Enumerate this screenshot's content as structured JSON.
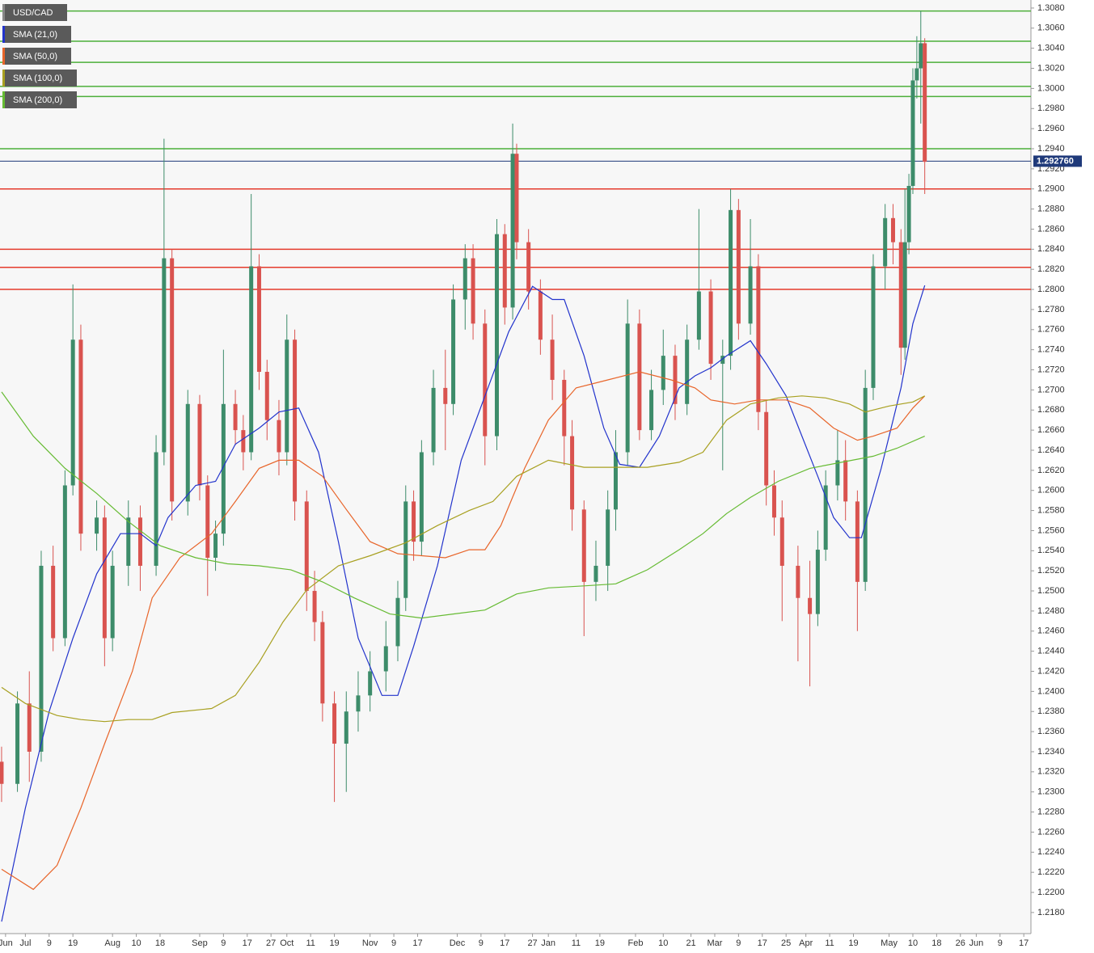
{
  "chart_data": {
    "type": "candlestick",
    "title": "USD/CAD",
    "title_color": "#888888",
    "up_color": "#3d8c6a",
    "down_color": "#d9534f",
    "x": [
      0,
      4,
      7,
      10,
      13,
      16,
      18,
      20,
      24,
      26,
      28,
      32,
      35,
      39,
      41,
      43,
      47,
      50,
      52,
      54,
      56,
      59,
      61,
      63,
      65,
      67,
      70,
      72,
      74,
      77,
      79,
      81,
      84,
      87,
      90,
      93,
      97,
      100,
      102,
      104,
      106,
      109,
      112,
      114,
      117,
      119,
      122,
      125,
      127,
      129,
      130,
      133,
      136,
      139,
      142,
      144,
      147,
      150,
      153,
      155,
      158,
      161,
      164,
      167,
      170,
      173,
      176,
      179,
      182,
      184,
      186,
      189,
      191,
      193,
      195,
      197,
      201,
      204,
      206,
      208,
      211,
      213,
      216,
      218,
      220,
      223,
      225,
      227,
      228,
      229,
      230,
      231,
      232,
      233
    ],
    "open": [
      1.233,
      1.2308,
      1.2388,
      1.234,
      1.2525,
      1.2453,
      1.2605,
      1.275,
      1.2557,
      1.2573,
      1.2453,
      1.2525,
      1.2573,
      1.2525,
      1.2638,
      1.2831,
      1.2589,
      1.2686,
      1.2605,
      1.2533,
      1.2557,
      1.2686,
      1.266,
      1.2638,
      1.2823,
      1.2718,
      1.267,
      1.2638,
      1.275,
      1.2589,
      1.25,
      1.2469,
      1.2388,
      1.2348,
      1.238,
      1.2396,
      1.242,
      1.2445,
      1.2493,
      1.2589,
      1.2549,
      1.2638,
      1.2702,
      1.2686,
      1.279,
      1.2831,
      1.2766,
      1.2654,
      1.2855,
      1.2782,
      1.2935,
      1.2847,
      1.2798,
      1.275,
      1.271,
      1.2654,
      1.2581,
      1.2509,
      1.2525,
      1.2581,
      1.2638,
      1.2766,
      1.266,
      1.27,
      1.2734,
      1.2686,
      1.275,
      1.2798,
      1.2726,
      1.2734,
      1.2879,
      1.2766,
      1.2823,
      1.2678,
      1.2605,
      1.2573,
      1.2525,
      1.2493,
      1.2477,
      1.2541,
      1.2605,
      1.263,
      1.2589,
      1.2509,
      1.2702,
      1.2823,
      1.2871,
      1.2847,
      1.2742,
      1.2847,
      1.2903,
      1.3008,
      1.302,
      1.3045
    ],
    "high": [
      1.2345,
      1.24,
      1.242,
      1.254,
      1.2545,
      1.262,
      1.2805,
      1.2765,
      1.259,
      1.2585,
      1.254,
      1.259,
      1.2585,
      1.2655,
      1.295,
      1.284,
      1.27,
      1.2695,
      1.2615,
      1.257,
      1.274,
      1.27,
      1.2675,
      1.2895,
      1.2835,
      1.273,
      1.269,
      1.2775,
      1.276,
      1.26,
      1.252,
      1.248,
      1.24,
      1.24,
      1.242,
      1.244,
      1.247,
      1.251,
      1.2605,
      1.26,
      1.265,
      1.272,
      1.274,
      1.2805,
      1.2845,
      1.2845,
      1.278,
      1.287,
      1.2865,
      1.2965,
      1.2945,
      1.286,
      1.281,
      1.2775,
      1.272,
      1.267,
      1.259,
      1.255,
      1.26,
      1.266,
      1.279,
      1.278,
      1.272,
      1.276,
      1.2745,
      1.2765,
      1.288,
      1.281,
      1.275,
      1.29,
      1.289,
      1.287,
      1.2835,
      1.269,
      1.262,
      1.259,
      1.2545,
      1.253,
      1.256,
      1.262,
      1.266,
      1.265,
      1.26,
      1.272,
      1.2835,
      1.2885,
      1.2885,
      1.286,
      1.29,
      1.2915,
      1.302,
      1.3052,
      1.3077,
      1.305
    ],
    "low": [
      1.229,
      1.23,
      1.231,
      1.233,
      1.244,
      1.2445,
      1.2595,
      1.254,
      1.254,
      1.2425,
      1.244,
      1.2505,
      1.25,
      1.2515,
      1.2625,
      1.257,
      1.2575,
      1.259,
      1.2495,
      1.252,
      1.2545,
      1.2645,
      1.262,
      1.263,
      1.27,
      1.265,
      1.2615,
      1.2625,
      1.257,
      1.248,
      1.245,
      1.237,
      1.229,
      1.23,
      1.236,
      1.238,
      1.24,
      1.243,
      1.248,
      1.253,
      1.2535,
      1.2625,
      1.264,
      1.2675,
      1.276,
      1.275,
      1.2625,
      1.264,
      1.2765,
      1.277,
      1.283,
      1.278,
      1.2735,
      1.269,
      1.2625,
      1.256,
      1.2455,
      1.249,
      1.25,
      1.256,
      1.2625,
      1.265,
      1.265,
      1.2685,
      1.267,
      1.2675,
      1.274,
      1.271,
      1.262,
      1.272,
      1.275,
      1.2755,
      1.266,
      1.2585,
      1.2555,
      1.247,
      1.243,
      1.2405,
      1.2465,
      1.253,
      1.259,
      1.257,
      1.246,
      1.25,
      1.269,
      1.28,
      1.2825,
      1.2715,
      1.273,
      1.2835,
      1.2895,
      1.299,
      1.2965,
      1.2895
    ],
    "close": [
      1.2308,
      1.2388,
      1.234,
      1.2525,
      1.2453,
      1.2605,
      1.275,
      1.2557,
      1.2573,
      1.2453,
      1.2525,
      1.2573,
      1.2525,
      1.2638,
      1.2831,
      1.2589,
      1.2686,
      1.2605,
      1.2533,
      1.2557,
      1.2686,
      1.266,
      1.2638,
      1.2823,
      1.2718,
      1.267,
      1.2638,
      1.275,
      1.2589,
      1.25,
      1.2469,
      1.2388,
      1.2348,
      1.238,
      1.2396,
      1.242,
      1.2445,
      1.2493,
      1.2589,
      1.2549,
      1.2638,
      1.2702,
      1.2686,
      1.279,
      1.2831,
      1.2766,
      1.2654,
      1.2855,
      1.2782,
      1.2935,
      1.2847,
      1.2798,
      1.275,
      1.271,
      1.2654,
      1.2581,
      1.2509,
      1.2525,
      1.2581,
      1.2638,
      1.2766,
      1.266,
      1.27,
      1.2734,
      1.2686,
      1.275,
      1.2798,
      1.2726,
      1.2734,
      1.2879,
      1.2766,
      1.2823,
      1.2678,
      1.2605,
      1.2573,
      1.2525,
      1.2493,
      1.2477,
      1.2541,
      1.2605,
      1.263,
      1.2589,
      1.2509,
      1.2702,
      1.2823,
      1.2871,
      1.2847,
      1.2742,
      1.2847,
      1.2903,
      1.3008,
      1.302,
      1.3045,
      1.2927
    ],
    "overlays": [
      {
        "name": "SMA (21,0)",
        "color": "#2233cc",
        "x": [
          0,
          6,
          12,
          18,
          24,
          30,
          35,
          39,
          42,
          49,
          54,
          59,
          65,
          70,
          75,
          80,
          85,
          90,
          96,
          100,
          104,
          110,
          116,
          122,
          128,
          134,
          139,
          142,
          147,
          152,
          156,
          161,
          166,
          171,
          175,
          179,
          183,
          189,
          193,
          198,
          202,
          206,
          210,
          214,
          217,
          222,
          227,
          230,
          233
        ],
        "values": [
          1.2171,
          1.2284,
          1.238,
          1.2453,
          1.2517,
          1.2557,
          1.2557,
          1.2545,
          1.2573,
          1.2605,
          1.2609,
          1.2646,
          1.2662,
          1.2678,
          1.2682,
          1.2638,
          1.2549,
          1.2453,
          1.2396,
          1.2396,
          1.2445,
          1.2525,
          1.263,
          1.2694,
          1.2758,
          1.2803,
          1.279,
          1.279,
          1.2734,
          1.2662,
          1.2626,
          1.2623,
          1.2654,
          1.2702,
          1.2714,
          1.2722,
          1.2734,
          1.2749,
          1.2726,
          1.2694,
          1.2654,
          1.2614,
          1.2573,
          1.2553,
          1.2553,
          1.2622,
          1.2702,
          1.2766,
          1.2804
        ]
      },
      {
        "name": "SMA (50,0)",
        "color": "#e8652a",
        "x": [
          0,
          8,
          14,
          20,
          26,
          33,
          38,
          45,
          53,
          59,
          65,
          70,
          75,
          81,
          87,
          93,
          100,
          106,
          112,
          118,
          122,
          126,
          132,
          138,
          145,
          153,
          161,
          169,
          175,
          179,
          185,
          191,
          198,
          204,
          210,
          216,
          220,
          226,
          230,
          233
        ],
        "values": [
          1.2223,
          1.2203,
          1.2227,
          1.2284,
          1.2348,
          1.242,
          1.2493,
          1.2533,
          1.2557,
          1.2589,
          1.2622,
          1.263,
          1.263,
          1.2614,
          1.2581,
          1.2549,
          1.2537,
          1.2535,
          1.2533,
          1.2541,
          1.2541,
          1.2565,
          1.2622,
          1.267,
          1.2702,
          1.271,
          1.2718,
          1.271,
          1.2702,
          1.269,
          1.2686,
          1.269,
          1.269,
          1.2682,
          1.2662,
          1.265,
          1.2654,
          1.2662,
          1.2682,
          1.2694
        ]
      },
      {
        "name": "SMA (100,0)",
        "color": "#a8a020",
        "x": [
          0,
          6,
          14,
          20,
          26,
          32,
          38,
          43,
          53,
          59,
          65,
          71,
          77,
          85,
          93,
          102,
          110,
          118,
          124,
          130,
          138,
          147,
          155,
          163,
          171,
          177,
          183,
          189,
          196,
          202,
          208,
          214,
          218,
          224,
          230,
          233
        ],
        "values": [
          1.2404,
          1.2388,
          1.2376,
          1.2372,
          1.237,
          1.2372,
          1.2372,
          1.2379,
          1.2383,
          1.2396,
          1.2429,
          1.2469,
          1.2501,
          1.2525,
          1.2535,
          1.2548,
          1.2565,
          1.258,
          1.2589,
          1.2614,
          1.263,
          1.2623,
          1.2623,
          1.2623,
          1.2628,
          1.2638,
          1.267,
          1.2686,
          1.2692,
          1.2694,
          1.2692,
          1.2686,
          1.2678,
          1.2684,
          1.2688,
          1.2694
        ]
      },
      {
        "name": "SMA (200,0)",
        "color": "#66bb33",
        "x": [
          0,
          8,
          16,
          24,
          32,
          40,
          49,
          57,
          65,
          73,
          81,
          89,
          98,
          106,
          114,
          122,
          130,
          138,
          147,
          155,
          163,
          171,
          177,
          183,
          189,
          196,
          204,
          212,
          220,
          226,
          233
        ],
        "values": [
          1.2698,
          1.2654,
          1.2622,
          1.2597,
          1.2569,
          1.2545,
          1.2533,
          1.2527,
          1.2525,
          1.2521,
          1.2509,
          1.2493,
          1.2477,
          1.2473,
          1.2477,
          1.2481,
          1.2497,
          1.2503,
          1.2505,
          1.2507,
          1.2521,
          1.2541,
          1.2557,
          1.2577,
          1.2593,
          1.2609,
          1.2622,
          1.2628,
          1.2634,
          1.2642,
          1.2654
        ]
      }
    ],
    "levels": [
      {
        "value": 1.3077,
        "color": "#4caf3a"
      },
      {
        "value": 1.3047,
        "color": "#4caf3a"
      },
      {
        "value": 1.3026,
        "color": "#4caf3a"
      },
      {
        "value": 1.3002,
        "color": "#4caf3a"
      },
      {
        "value": 1.2992,
        "color": "#4caf3a"
      },
      {
        "value": 1.294,
        "color": "#4caf3a"
      },
      {
        "value": 1.29,
        "color": "#e53b2c"
      },
      {
        "value": 1.284,
        "color": "#e53b2c"
      },
      {
        "value": 1.2822,
        "color": "#e53b2c"
      },
      {
        "value": 1.28,
        "color": "#e53b2c"
      }
    ],
    "last_price": {
      "value": 1.29276,
      "label": "1.292760",
      "color": "#1f3a7a"
    },
    "xlim": [
      -0.4,
      259.8
    ],
    "xticks": [
      {
        "value": 1,
        "label": "Jun"
      },
      {
        "value": 6,
        "label": "Jul"
      },
      {
        "value": 12,
        "label": "9"
      },
      {
        "value": 18,
        "label": "19"
      },
      {
        "value": 28,
        "label": "Aug"
      },
      {
        "value": 34,
        "label": "10"
      },
      {
        "value": 40,
        "label": "18"
      },
      {
        "value": 50,
        "label": "Sep"
      },
      {
        "value": 56,
        "label": "9"
      },
      {
        "value": 62,
        "label": "17"
      },
      {
        "value": 68,
        "label": "27"
      },
      {
        "value": 72,
        "label": "Oct"
      },
      {
        "value": 78,
        "label": "11"
      },
      {
        "value": 84,
        "label": "19"
      },
      {
        "value": 93,
        "label": "Nov"
      },
      {
        "value": 99,
        "label": "9"
      },
      {
        "value": 105,
        "label": "17"
      },
      {
        "value": 115,
        "label": "Dec"
      },
      {
        "value": 121,
        "label": "9"
      },
      {
        "value": 127,
        "label": "17"
      },
      {
        "value": 134,
        "label": "27"
      },
      {
        "value": 138,
        "label": "Jan"
      },
      {
        "value": 145,
        "label": "11"
      },
      {
        "value": 151,
        "label": "19"
      },
      {
        "value": 160,
        "label": "Feb"
      },
      {
        "value": 167,
        "label": "10"
      },
      {
        "value": 174,
        "label": "21"
      },
      {
        "value": 180,
        "label": "Mar"
      },
      {
        "value": 186,
        "label": "9"
      },
      {
        "value": 192,
        "label": "17"
      },
      {
        "value": 198,
        "label": "25"
      },
      {
        "value": 203,
        "label": "Apr"
      },
      {
        "value": 209,
        "label": "11"
      },
      {
        "value": 215,
        "label": "19"
      },
      {
        "value": 224,
        "label": "May"
      },
      {
        "value": 230,
        "label": "10"
      },
      {
        "value": 236,
        "label": "18"
      },
      {
        "value": 242,
        "label": "26"
      },
      {
        "value": 246,
        "label": "Jun"
      },
      {
        "value": 252,
        "label": "9"
      },
      {
        "value": 258,
        "label": "17"
      }
    ],
    "ylim": [
      1.2159,
      1.3088
    ],
    "yticks": [
      {
        "value": 1.218,
        "label": "1.2180"
      },
      {
        "value": 1.22,
        "label": "1.2200"
      },
      {
        "value": 1.222,
        "label": "1.2220"
      },
      {
        "value": 1.224,
        "label": "1.2240"
      },
      {
        "value": 1.226,
        "label": "1.2260"
      },
      {
        "value": 1.228,
        "label": "1.2280"
      },
      {
        "value": 1.23,
        "label": "1.2300"
      },
      {
        "value": 1.232,
        "label": "1.2320"
      },
      {
        "value": 1.234,
        "label": "1.2340"
      },
      {
        "value": 1.236,
        "label": "1.2360"
      },
      {
        "value": 1.238,
        "label": "1.2380"
      },
      {
        "value": 1.24,
        "label": "1.2400"
      },
      {
        "value": 1.242,
        "label": "1.2420"
      },
      {
        "value": 1.244,
        "label": "1.2440"
      },
      {
        "value": 1.246,
        "label": "1.2460"
      },
      {
        "value": 1.248,
        "label": "1.2480"
      },
      {
        "value": 1.25,
        "label": "1.2500"
      },
      {
        "value": 1.252,
        "label": "1.2520"
      },
      {
        "value": 1.254,
        "label": "1.2540"
      },
      {
        "value": 1.256,
        "label": "1.2560"
      },
      {
        "value": 1.258,
        "label": "1.2580"
      },
      {
        "value": 1.26,
        "label": "1.2600"
      },
      {
        "value": 1.262,
        "label": "1.2620"
      },
      {
        "value": 1.264,
        "label": "1.2640"
      },
      {
        "value": 1.266,
        "label": "1.2660"
      },
      {
        "value": 1.268,
        "label": "1.2680"
      },
      {
        "value": 1.27,
        "label": "1.2700"
      },
      {
        "value": 1.272,
        "label": "1.2720"
      },
      {
        "value": 1.274,
        "label": "1.2740"
      },
      {
        "value": 1.276,
        "label": "1.2760"
      },
      {
        "value": 1.278,
        "label": "1.2780"
      },
      {
        "value": 1.28,
        "label": "1.2800"
      },
      {
        "value": 1.282,
        "label": "1.2820"
      },
      {
        "value": 1.284,
        "label": "1.2840"
      },
      {
        "value": 1.286,
        "label": "1.2860"
      },
      {
        "value": 1.288,
        "label": "1.2880"
      },
      {
        "value": 1.29,
        "label": "1.2900"
      },
      {
        "value": 1.292,
        "label": "1.2920"
      },
      {
        "value": 1.294,
        "label": "1.2940"
      },
      {
        "value": 1.296,
        "label": "1.2960"
      },
      {
        "value": 1.298,
        "label": "1.2980"
      },
      {
        "value": 1.3,
        "label": "1.3000"
      },
      {
        "value": 1.302,
        "label": "1.3020"
      },
      {
        "value": 1.304,
        "label": "1.3040"
      },
      {
        "value": 1.306,
        "label": "1.3060"
      },
      {
        "value": 1.308,
        "label": "1.3080"
      }
    ],
    "grid": false
  }
}
